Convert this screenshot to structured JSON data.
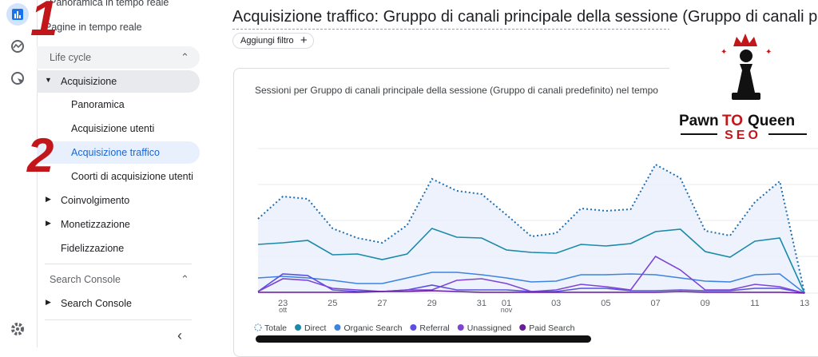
{
  "sidebar": {
    "items": [
      "Panoramica in tempo reale",
      "Pagine in tempo reale"
    ],
    "lifecycle": {
      "title": "Life cycle",
      "group": "Acquisizione",
      "children": [
        "Panoramica",
        "Acquisizione utenti",
        "Acquisizione traffico",
        "Coorti di acquisizione utenti"
      ],
      "others": [
        "Coinvolgimento",
        "Monetizzazione",
        "Fidelizzazione"
      ]
    },
    "search_console": {
      "title": "Search Console",
      "item": "Search Console"
    }
  },
  "annotations": [
    "1",
    "2"
  ],
  "header": {
    "title": "Acquisizione traffico: Gruppo di canali principale della sessione (Gruppo di canali predefinito)",
    "filter": "Aggiungi filtro"
  },
  "logo": {
    "word1": "Pawn",
    "word2": "TO",
    "word3": "Queen",
    "tagline": "SEO"
  },
  "chart_data": {
    "type": "line",
    "title": "Sessioni per Gruppo di canali principale della sessione (Gruppo di canali predefinito) nel tempo",
    "categories": [
      null,
      "23",
      null,
      "25",
      null,
      "27",
      null,
      "29",
      null,
      "31",
      "01",
      null,
      "03",
      null,
      "05",
      null,
      "07",
      null,
      "09",
      null,
      "11",
      null,
      "13"
    ],
    "category_sublabels": [
      null,
      "ott",
      null,
      null,
      null,
      null,
      null,
      null,
      null,
      null,
      "nov",
      null,
      null,
      null,
      null,
      null,
      null,
      null,
      null,
      null,
      null,
      null,
      null
    ],
    "ylim": [
      0,
      230
    ],
    "series": [
      {
        "name": "Totale",
        "color": "#1f6fb2",
        "values": [
          93,
          121,
          118,
          81,
          69,
          63,
          85,
          143,
          128,
          124,
          98,
          71,
          75,
          106,
          103,
          105,
          161,
          144,
          78,
          72,
          114,
          140,
          0
        ]
      },
      {
        "name": "Direct",
        "color": "#1a8aa8",
        "values": [
          61,
          63,
          66,
          48,
          49,
          42,
          49,
          81,
          70,
          69,
          54,
          51,
          50,
          61,
          59,
          62,
          77,
          80,
          52,
          45,
          65,
          69,
          0
        ]
      },
      {
        "name": "Organic Search",
        "color": "#3d84e0",
        "values": [
          19,
          21,
          19,
          16,
          12,
          12,
          19,
          26,
          26,
          23,
          19,
          14,
          15,
          23,
          23,
          24,
          23,
          19,
          15,
          14,
          23,
          24,
          0
        ]
      },
      {
        "name": "Referral",
        "color": "#5b4fe0",
        "values": [
          2,
          24,
          22,
          4,
          2,
          2,
          4,
          10,
          4,
          4,
          4,
          2,
          2,
          6,
          6,
          3,
          3,
          4,
          3,
          3,
          6,
          6,
          0
        ]
      },
      {
        "name": "Unassigned",
        "color": "#7e45d4",
        "values": [
          2,
          18,
          16,
          6,
          4,
          2,
          4,
          4,
          16,
          18,
          12,
          2,
          4,
          11,
          8,
          4,
          46,
          29,
          4,
          4,
          11,
          8,
          0
        ]
      },
      {
        "name": "Paid Search",
        "color": "#6a1b9a",
        "values": [
          1,
          1,
          1,
          1,
          1,
          2,
          2,
          3,
          2,
          1,
          1,
          1,
          1,
          1,
          1,
          1,
          1,
          2,
          1,
          1,
          1,
          1,
          0
        ]
      }
    ]
  }
}
